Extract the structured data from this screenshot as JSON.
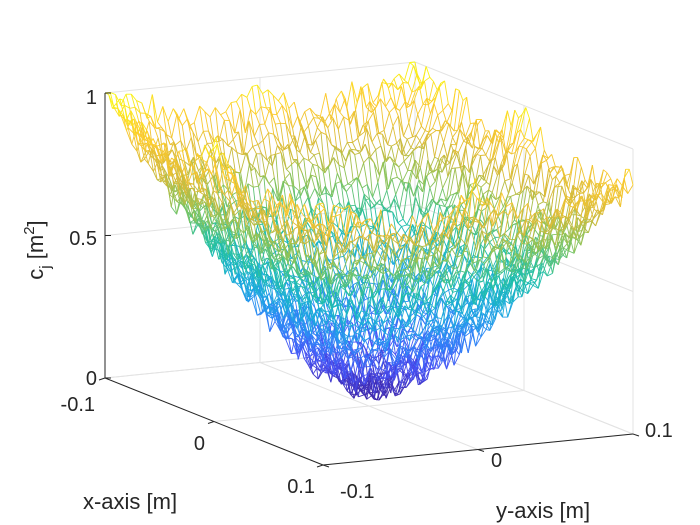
{
  "chart_data": {
    "type": "surface-mesh",
    "title": "",
    "xlabel": "x-axis [m]",
    "ylabel": "y-axis [m]",
    "zlabel": {
      "base": "c",
      "sub": "j",
      "unit_open": " [m",
      "sup": "2",
      "unit_close": "]"
    },
    "xlim": [
      -0.1,
      0.1
    ],
    "ylim": [
      -0.1,
      0.1
    ],
    "zlim": [
      0,
      1
    ],
    "xticks": [
      -0.1,
      0,
      0.1
    ],
    "yticks": [
      -0.1,
      0,
      0.1
    ],
    "zticks": [
      0,
      0.5,
      1
    ],
    "xtick_labels": [
      "-0.1",
      "0",
      "0.1"
    ],
    "ytick_labels": [
      "-0.1",
      "0",
      "0.1"
    ],
    "ztick_labels": [
      "0",
      "0.5",
      "1"
    ],
    "grid": true,
    "colormap": [
      "#3e26a8",
      "#4852f6",
      "#2e87f7",
      "#1aacdc",
      "#20c0a6",
      "#82c45e",
      "#d7ba38",
      "#fdca2f",
      "#f9fb0e"
    ],
    "surface": {
      "description": "noisy bowl: corners ~1, center ~0.1",
      "model": "c = 0.05 + 0.95 * (max(|x|,|y|)/0.1)^1.6 * blend + noise",
      "grid_points": 60,
      "corner_values": {
        "(-0.1,-0.1)": 0.97,
        "(0.1,-0.1)": 0.82,
        "(-0.1,0.1)": 0.98,
        "(0.1,0.1)": 0.82
      },
      "center_value": 0.05
    }
  }
}
